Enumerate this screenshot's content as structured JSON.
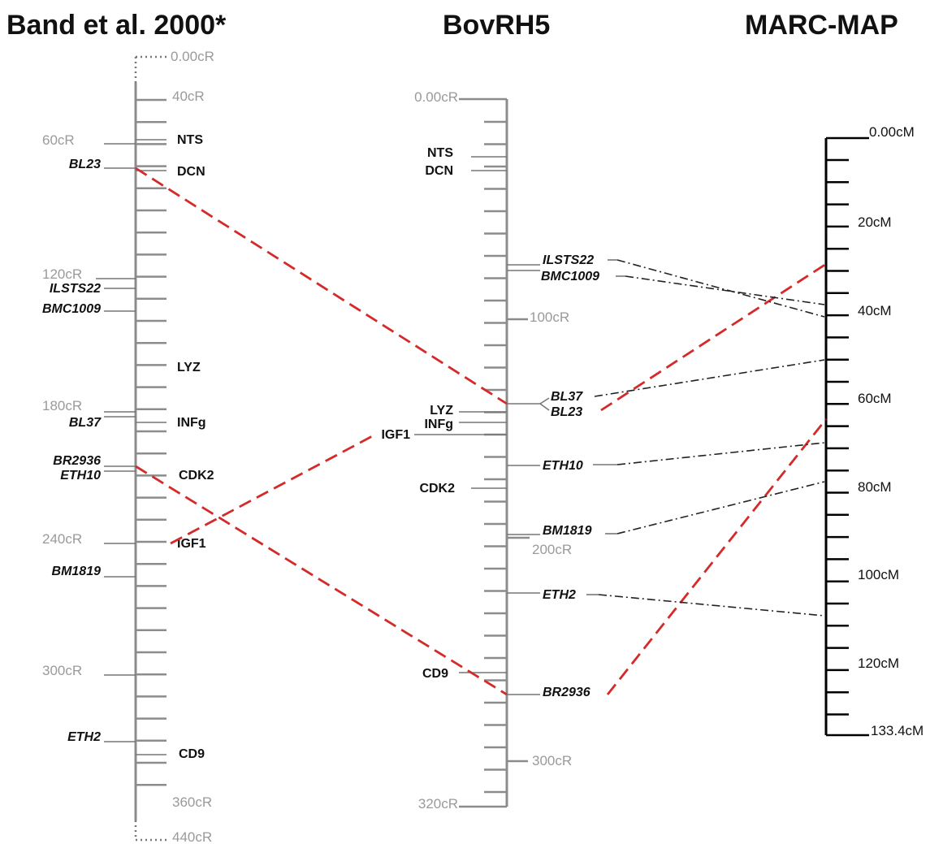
{
  "titles": {
    "left": "Band et al. 2000*",
    "middle": "BovRH5",
    "right": "MARC-MAP"
  },
  "left_map": {
    "scale_labels": [
      "0.00cR",
      "40cR",
      "60cR",
      "120cR",
      "180cR",
      "240cR",
      "300cR",
      "360cR",
      "440cR"
    ],
    "markers_right": [
      "NTS",
      "DCN",
      "LYZ",
      "INFg",
      "CDK2",
      "IGF1",
      "CD9"
    ],
    "markers_left_italic": [
      "BL23",
      "ILSTS22",
      "BMC1009",
      "BL37",
      "BR2936",
      "ETH10",
      "BM1819",
      "ETH2"
    ]
  },
  "middle_map": {
    "scale_labels": [
      "0.00cR",
      "100cR",
      "200cR",
      "300cR",
      "320cR"
    ],
    "markers_left": [
      "NTS",
      "DCN",
      "LYZ",
      "INFg",
      "IGF1",
      "CDK2",
      "CD9"
    ],
    "markers_right_italic": [
      "ILSTS22",
      "BMC1009",
      "BL37",
      "BL23",
      "ETH10",
      "BM1819",
      "ETH2",
      "BR2936"
    ]
  },
  "right_map": {
    "scale_labels": [
      "0.00cM",
      "20cM",
      "40cM",
      "60cM",
      "80cM",
      "100cM",
      "120cM",
      "133.4cM"
    ]
  }
}
